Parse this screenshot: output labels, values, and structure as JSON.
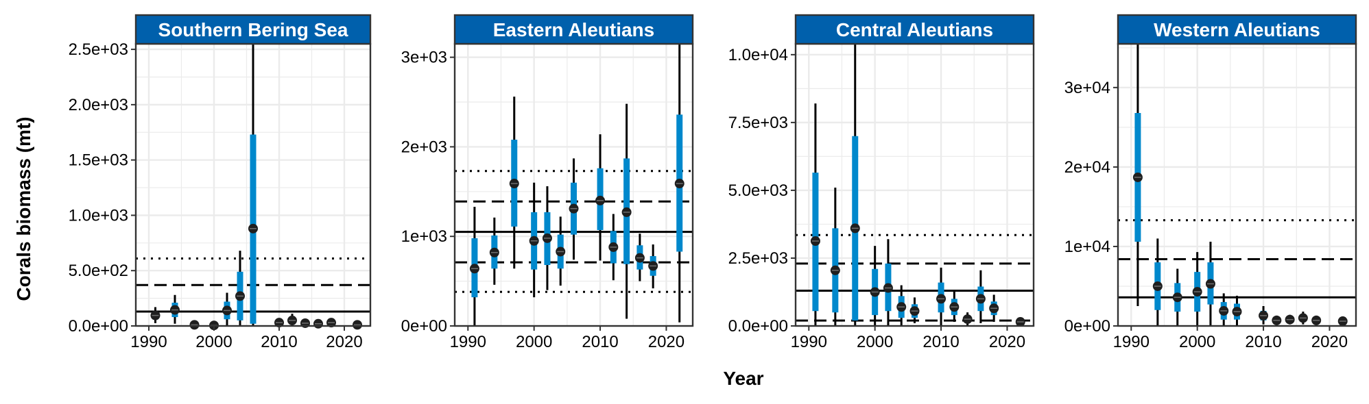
{
  "chart_data": {
    "type": "scatter",
    "xlabel": "Year",
    "ylabel": "Corals biomass (mt)",
    "colors": {
      "strip": "#0060AC",
      "interval": "#0088CC",
      "point": "#1F1F1F",
      "grid": "#EBEBEB"
    },
    "reference_lines": [
      "mean",
      "mean + 1 SD",
      "mean + 2 SD"
    ],
    "panels": [
      {
        "title": "Southern Bering Sea",
        "xlim": [
          1988,
          2024
        ],
        "ylim": [
          0,
          2550
        ],
        "x_ticks": [
          1990,
          2000,
          2010,
          2020
        ],
        "y_ticks": [
          0,
          500,
          1000,
          1500,
          2000,
          2500
        ],
        "y_tick_labels": [
          "0.0e+00",
          "5.0e+02",
          "1.0e+03",
          "1.5e+03",
          "2.0e+03",
          "2.5e+03"
        ],
        "hlines": {
          "mean": 130,
          "sd1": 370,
          "sd2": 610
        },
        "points": [
          {
            "x": 1991,
            "y": 95,
            "lo": 60,
            "hi": 130,
            "lo2": 25,
            "hi2": 170
          },
          {
            "x": 1994,
            "y": 145,
            "lo": 80,
            "hi": 210,
            "lo2": 20,
            "hi2": 280
          },
          {
            "x": 1997,
            "y": 10,
            "lo": 5,
            "hi": 20,
            "lo2": 0,
            "hi2": 30
          },
          {
            "x": 2000,
            "y": 5,
            "lo": 0,
            "hi": 10,
            "lo2": 0,
            "hi2": 15
          },
          {
            "x": 2002,
            "y": 140,
            "lo": 60,
            "hi": 220,
            "lo2": 0,
            "hi2": 300
          },
          {
            "x": 2004,
            "y": 270,
            "lo": 50,
            "hi": 490,
            "lo2": 0,
            "hi2": 680
          },
          {
            "x": 2006,
            "y": 880,
            "lo": 20,
            "hi": 1730,
            "lo2": 0,
            "hi2": 2600
          },
          {
            "x": 2010,
            "y": 30,
            "lo": 10,
            "hi": 50,
            "lo2": 0,
            "hi2": 70
          },
          {
            "x": 2012,
            "y": 50,
            "lo": 20,
            "hi": 80,
            "lo2": 0,
            "hi2": 110
          },
          {
            "x": 2014,
            "y": 25,
            "lo": 10,
            "hi": 40,
            "lo2": 0,
            "hi2": 55
          },
          {
            "x": 2016,
            "y": 20,
            "lo": 10,
            "hi": 30,
            "lo2": 0,
            "hi2": 40
          },
          {
            "x": 2018,
            "y": 30,
            "lo": 15,
            "hi": 45,
            "lo2": 0,
            "hi2": 60
          },
          {
            "x": 2022,
            "y": 10,
            "lo": 5,
            "hi": 15,
            "lo2": 0,
            "hi2": 20
          }
        ]
      },
      {
        "title": "Eastern Aleutians",
        "xlim": [
          1988,
          2024
        ],
        "ylim": [
          0,
          3150
        ],
        "x_ticks": [
          1990,
          2000,
          2010,
          2020
        ],
        "y_ticks": [
          0,
          1000,
          2000,
          3000
        ],
        "y_tick_labels": [
          "0e+00",
          "1e+03",
          "2e+03",
          "3e+03"
        ],
        "hlines": {
          "mean": 1050,
          "sd1": 1390,
          "sd2": 1730,
          "sd1_low": 710,
          "sd2_low": 380
        },
        "points": [
          {
            "x": 1991,
            "y": 640,
            "lo": 320,
            "hi": 980,
            "lo2": 0,
            "hi2": 1330
          },
          {
            "x": 1994,
            "y": 820,
            "lo": 640,
            "hi": 1010,
            "lo2": 460,
            "hi2": 1210
          },
          {
            "x": 1997,
            "y": 1590,
            "lo": 1110,
            "hi": 2080,
            "lo2": 640,
            "hi2": 2560
          },
          {
            "x": 2000,
            "y": 950,
            "lo": 630,
            "hi": 1270,
            "lo2": 320,
            "hi2": 1600
          },
          {
            "x": 2002,
            "y": 980,
            "lo": 680,
            "hi": 1270,
            "lo2": 400,
            "hi2": 1560
          },
          {
            "x": 2004,
            "y": 830,
            "lo": 640,
            "hi": 1020,
            "lo2": 450,
            "hi2": 1220
          },
          {
            "x": 2006,
            "y": 1310,
            "lo": 1020,
            "hi": 1600,
            "lo2": 740,
            "hi2": 1870
          },
          {
            "x": 2010,
            "y": 1400,
            "lo": 1070,
            "hi": 1760,
            "lo2": 730,
            "hi2": 2140
          },
          {
            "x": 2012,
            "y": 880,
            "lo": 700,
            "hi": 1060,
            "lo2": 510,
            "hi2": 1250
          },
          {
            "x": 2014,
            "y": 1270,
            "lo": 690,
            "hi": 1870,
            "lo2": 80,
            "hi2": 2480
          },
          {
            "x": 2016,
            "y": 760,
            "lo": 630,
            "hi": 900,
            "lo2": 500,
            "hi2": 1030
          },
          {
            "x": 2018,
            "y": 670,
            "lo": 560,
            "hi": 780,
            "lo2": 420,
            "hi2": 910
          },
          {
            "x": 2022,
            "y": 1590,
            "lo": 830,
            "hi": 2360,
            "lo2": 40,
            "hi2": 3150
          }
        ]
      },
      {
        "title": "Central Aleutians",
        "xlim": [
          1988,
          2024
        ],
        "ylim": [
          0,
          10400
        ],
        "x_ticks": [
          1990,
          2000,
          2010,
          2020
        ],
        "y_ticks": [
          0,
          2500,
          5000,
          7500,
          10000
        ],
        "y_tick_labels": [
          "0.0e+00",
          "2.5e+03",
          "5.0e+03",
          "7.5e+03",
          "1.0e+04"
        ],
        "hlines": {
          "mean": 1300,
          "sd1": 2300,
          "sd2": 3350,
          "sd1_low": 200
        },
        "points": [
          {
            "x": 1991,
            "y": 3130,
            "lo": 550,
            "hi": 5650,
            "lo2": 0,
            "hi2": 8200
          },
          {
            "x": 1994,
            "y": 2050,
            "lo": 500,
            "hi": 3600,
            "lo2": 0,
            "hi2": 5100
          },
          {
            "x": 1997,
            "y": 3600,
            "lo": 200,
            "hi": 7000,
            "lo2": 0,
            "hi2": 10400
          },
          {
            "x": 2000,
            "y": 1250,
            "lo": 400,
            "hi": 2100,
            "lo2": 0,
            "hi2": 2950
          },
          {
            "x": 2002,
            "y": 1400,
            "lo": 550,
            "hi": 2300,
            "lo2": 0,
            "hi2": 3200
          },
          {
            "x": 2004,
            "y": 700,
            "lo": 300,
            "hi": 1100,
            "lo2": 0,
            "hi2": 1500
          },
          {
            "x": 2006,
            "y": 550,
            "lo": 300,
            "hi": 800,
            "lo2": 100,
            "hi2": 1050
          },
          {
            "x": 2010,
            "y": 1000,
            "lo": 500,
            "hi": 1600,
            "lo2": 0,
            "hi2": 2150
          },
          {
            "x": 2012,
            "y": 700,
            "lo": 400,
            "hi": 1000,
            "lo2": 150,
            "hi2": 1300
          },
          {
            "x": 2014,
            "y": 250,
            "lo": 120,
            "hi": 380,
            "lo2": 0,
            "hi2": 500
          },
          {
            "x": 2016,
            "y": 1000,
            "lo": 550,
            "hi": 1450,
            "lo2": 100,
            "hi2": 2050
          },
          {
            "x": 2018,
            "y": 650,
            "lo": 400,
            "hi": 900,
            "lo2": 150,
            "hi2": 1150
          },
          {
            "x": 2022,
            "y": 150,
            "lo": 80,
            "hi": 220,
            "lo2": 0,
            "hi2": 300
          }
        ]
      },
      {
        "title": "Western Aleutians",
        "xlim": [
          1988,
          2024
        ],
        "ylim": [
          0,
          35500
        ],
        "x_ticks": [
          1990,
          2000,
          2010,
          2020
        ],
        "y_ticks": [
          0,
          10000,
          20000,
          30000
        ],
        "y_tick_labels": [
          "0e+00",
          "1e+04",
          "2e+04",
          "3e+04"
        ],
        "hlines": {
          "mean": 3600,
          "sd1": 8400,
          "sd2": 13300
        },
        "points": [
          {
            "x": 1991,
            "y": 18700,
            "lo": 10600,
            "hi": 26800,
            "lo2": 2500,
            "hi2": 35500
          },
          {
            "x": 1994,
            "y": 5000,
            "lo": 2000,
            "hi": 8000,
            "lo2": 0,
            "hi2": 11000
          },
          {
            "x": 1997,
            "y": 3600,
            "lo": 1800,
            "hi": 5400,
            "lo2": 0,
            "hi2": 7200
          },
          {
            "x": 2000,
            "y": 4300,
            "lo": 1800,
            "hi": 6800,
            "lo2": 0,
            "hi2": 9300
          },
          {
            "x": 2002,
            "y": 5300,
            "lo": 2700,
            "hi": 8000,
            "lo2": 0,
            "hi2": 10600
          },
          {
            "x": 2004,
            "y": 1900,
            "lo": 800,
            "hi": 3000,
            "lo2": 0,
            "hi2": 4100
          },
          {
            "x": 2006,
            "y": 1800,
            "lo": 800,
            "hi": 2800,
            "lo2": 0,
            "hi2": 3800
          },
          {
            "x": 2010,
            "y": 1300,
            "lo": 700,
            "hi": 1900,
            "lo2": 200,
            "hi2": 2500
          },
          {
            "x": 2012,
            "y": 700,
            "lo": 400,
            "hi": 1000,
            "lo2": 100,
            "hi2": 1300
          },
          {
            "x": 2014,
            "y": 800,
            "lo": 500,
            "hi": 1100,
            "lo2": 200,
            "hi2": 1400
          },
          {
            "x": 2016,
            "y": 1000,
            "lo": 600,
            "hi": 1400,
            "lo2": 200,
            "hi2": 1800
          },
          {
            "x": 2018,
            "y": 700,
            "lo": 400,
            "hi": 1000,
            "lo2": 100,
            "hi2": 1300
          },
          {
            "x": 2022,
            "y": 600,
            "lo": 300,
            "hi": 900,
            "lo2": 0,
            "hi2": 1200
          }
        ]
      }
    ]
  }
}
